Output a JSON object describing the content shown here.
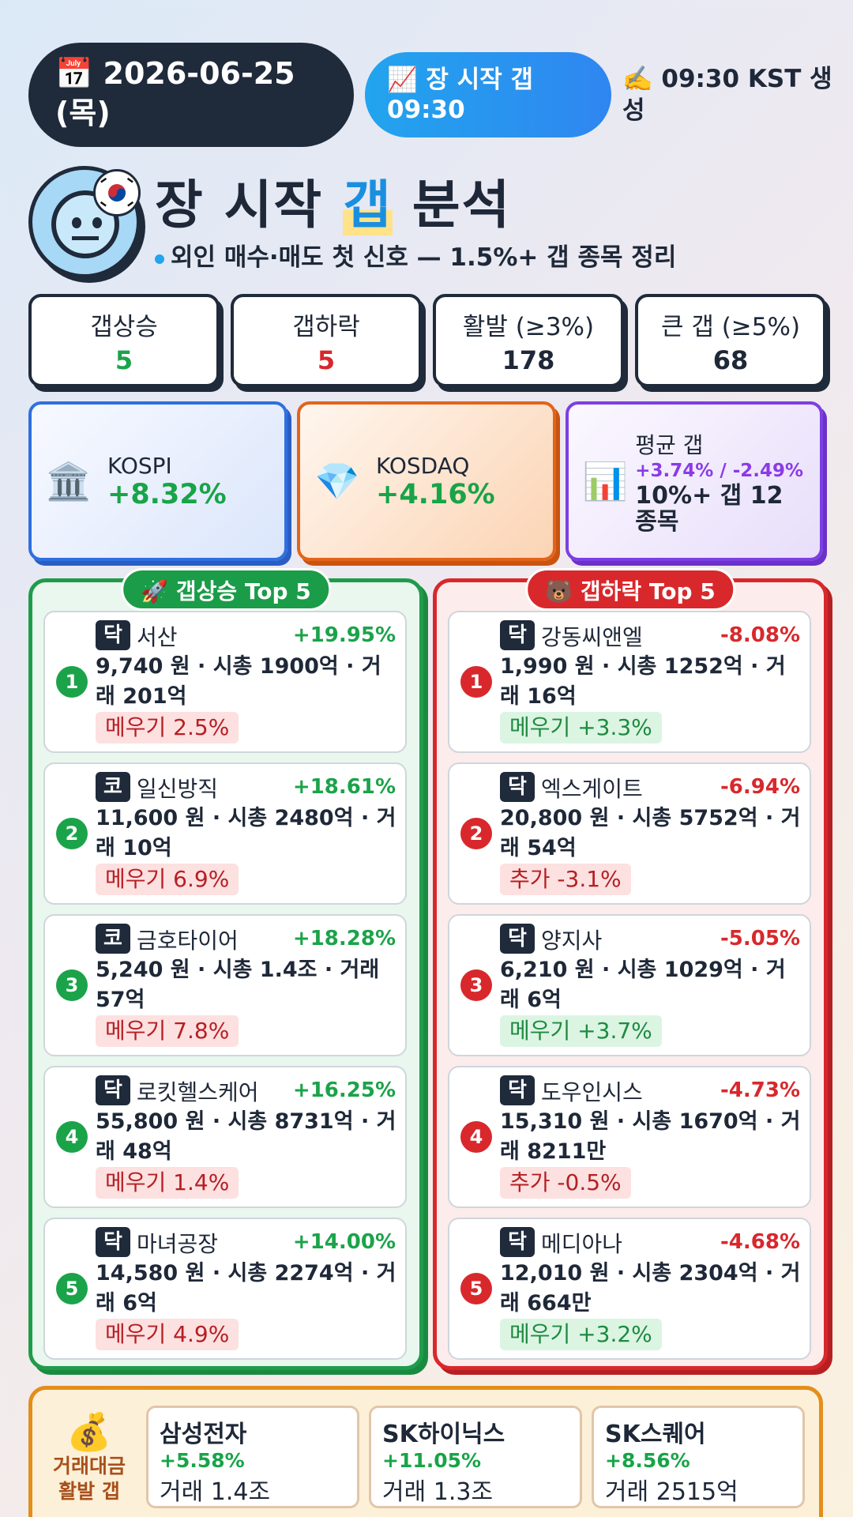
{
  "header": {
    "date_icon": "calendar-icon",
    "date": "📅 2026-06-25 (목)",
    "start_pill": "📈 장 시작 갭 09:30",
    "generated": "✍️ 09:30 KST 생성"
  },
  "title": {
    "part1": "장 시작 ",
    "highlight": "갭",
    "part2": " 분석"
  },
  "subtitle": "외인 매수·매도 첫 신호 — 1.5%+ 갭 종목 정리",
  "stats": [
    {
      "label": "갭상승",
      "value": "5",
      "color": "#1ba34a"
    },
    {
      "label": "갭하락",
      "value": "5",
      "color": "#d8282c"
    },
    {
      "label": "활발 (≥3%)",
      "value": "178",
      "color": "#1e2838"
    },
    {
      "label": "큰 갭 (≥5%)",
      "value": "68",
      "color": "#1e2838"
    }
  ],
  "indices": {
    "kospi": {
      "icon": "🏛️",
      "name": "KOSPI",
      "pct": "+8.32%"
    },
    "kosdaq": {
      "icon": "💎",
      "name": "KOSDAQ",
      "pct": "+4.16%"
    },
    "avg": {
      "icon": "📊",
      "name": "평균 갭",
      "pct": "+3.74% / -2.49%",
      "extra": "10%+ 갭 12 종목"
    }
  },
  "gap_up": {
    "title": "🚀 갭상승 Top 5",
    "items": [
      {
        "rank": "1",
        "market": "닥",
        "name": "서산",
        "pct": "+19.95%",
        "detail": "9,740 원 · 시총 1900억 · 거래 201억",
        "tag": "메우기 2.5%"
      },
      {
        "rank": "2",
        "market": "코",
        "name": "일신방직",
        "pct": "+18.61%",
        "detail": "11,600 원 · 시총 2480억 · 거래 10억",
        "tag": "메우기 6.9%"
      },
      {
        "rank": "3",
        "market": "코",
        "name": "금호타이어",
        "pct": "+18.28%",
        "detail": "5,240 원 · 시총 1.4조 · 거래 57억",
        "tag": "메우기 7.8%"
      },
      {
        "rank": "4",
        "market": "닥",
        "name": "로킷헬스케어",
        "pct": "+16.25%",
        "detail": "55,800 원 · 시총 8731억 · 거래 48억",
        "tag": "메우기 1.4%"
      },
      {
        "rank": "5",
        "market": "닥",
        "name": "마녀공장",
        "pct": "+14.00%",
        "detail": "14,580 원 · 시총 2274억 · 거래 6억",
        "tag": "메우기 4.9%"
      }
    ]
  },
  "gap_down": {
    "title": "🐻 갭하락 Top 5",
    "items": [
      {
        "rank": "1",
        "market": "닥",
        "name": "강동씨앤엘",
        "pct": "-8.08%",
        "detail": "1,990 원 · 시총 1252억 · 거래 16억",
        "tag": "메우기 +3.3%",
        "tag_type": "green"
      },
      {
        "rank": "2",
        "market": "닥",
        "name": "엑스게이트",
        "pct": "-6.94%",
        "detail": "20,800 원 · 시총 5752억 · 거래 54억",
        "tag": "추가 -3.1%",
        "tag_type": "red"
      },
      {
        "rank": "3",
        "market": "닥",
        "name": "양지사",
        "pct": "-5.05%",
        "detail": "6,210 원 · 시총 1029억 · 거래 6억",
        "tag": "메우기 +3.7%",
        "tag_type": "green"
      },
      {
        "rank": "4",
        "market": "닥",
        "name": "도우인시스",
        "pct": "-4.73%",
        "detail": "15,310 원 · 시총 1670억 · 거래 8211만",
        "tag": "추가 -0.5%",
        "tag_type": "red"
      },
      {
        "rank": "5",
        "market": "닥",
        "name": "메디아나",
        "pct": "-4.68%",
        "detail": "12,010 원 · 시총 2304억 · 거래 664만",
        "tag": "메우기 +3.2%",
        "tag_type": "green"
      }
    ]
  },
  "volume": {
    "icon": "💰",
    "label": "거래대금 활발 갭",
    "items": [
      {
        "name": "삼성전자",
        "pct": "+5.58%",
        "vol": "거래 1.4조"
      },
      {
        "name": "SK하이닉스",
        "pct": "+11.05%",
        "vol": "거래 1.3조"
      },
      {
        "name": "SK스퀘어",
        "pct": "+8.56%",
        "vol": "거래 2515억"
      }
    ]
  },
  "colors": {
    "up": "#1ba34a",
    "down": "#d8282c",
    "dark": "#1f2a3a",
    "accent": "#22a4ee"
  }
}
